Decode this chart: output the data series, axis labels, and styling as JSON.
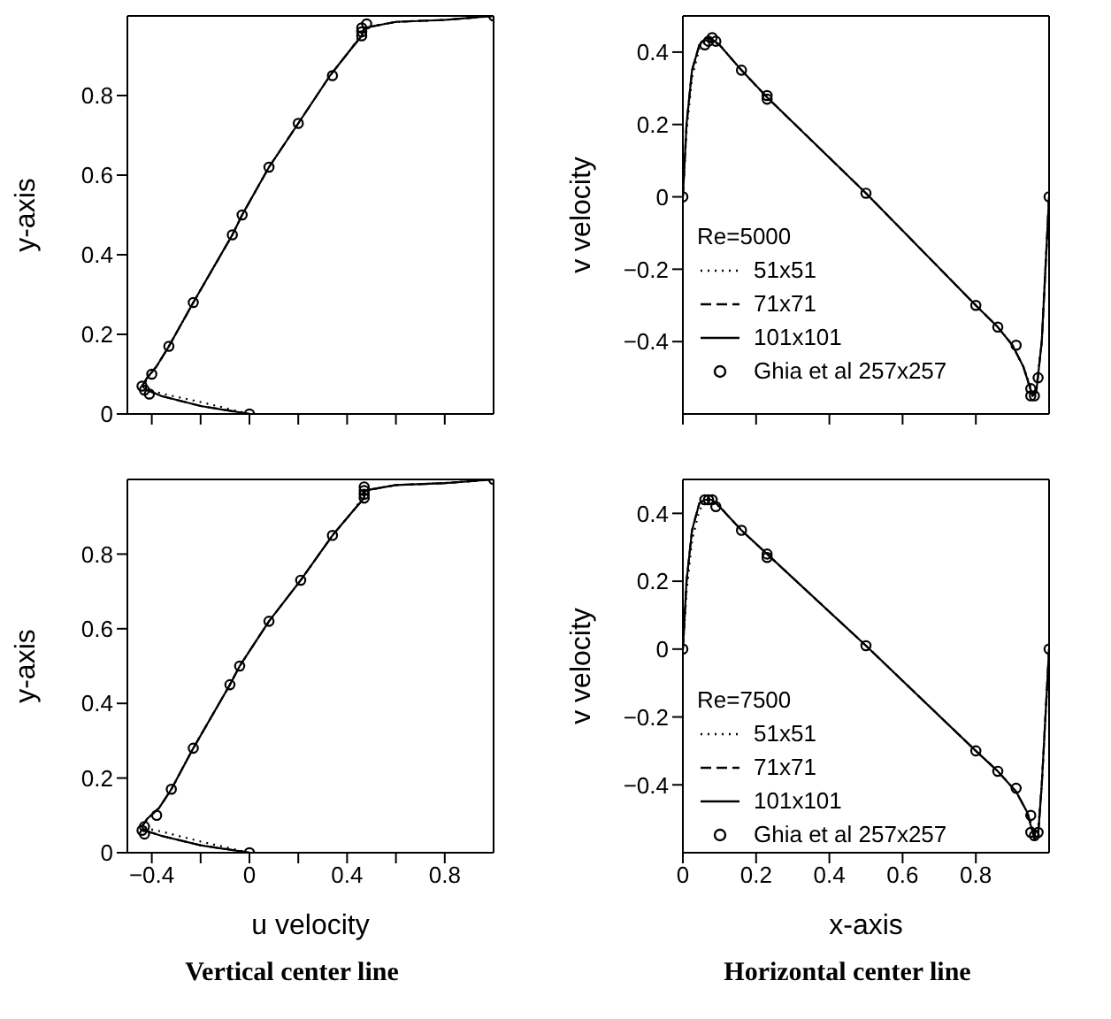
{
  "chart_data": [
    {
      "type": "line",
      "ylabel": "y-axis",
      "xlim": [
        -0.5,
        1
      ],
      "ylim": [
        0,
        1
      ],
      "xticks": [
        {
          "value": -0.4,
          "label": null
        },
        {
          "value": -0.2,
          "label": null
        },
        {
          "value": 0,
          "label": null
        },
        {
          "value": 0.2,
          "label": null
        },
        {
          "value": 0.4,
          "label": null
        },
        {
          "value": 0.6,
          "label": null
        },
        {
          "value": 0.8,
          "label": null
        }
      ],
      "yticks": [
        0,
        0.2,
        0.4,
        0.6,
        0.8
      ],
      "tick_labels": "y",
      "series": [
        {
          "color": "#000000",
          "line_style": "dotted",
          "marker": "none",
          "x": [
            0,
            -0.2,
            -0.35,
            -0.41,
            -0.43,
            -0.42,
            -0.38,
            -0.33,
            -0.23,
            -0.07,
            -0.03,
            0.08,
            0.2,
            0.33,
            0.42,
            0.45,
            0.46,
            0.6,
            0.8,
            1
          ],
          "values": [
            0,
            0.03,
            0.05,
            0.06,
            0.07,
            0.09,
            0.12,
            0.17,
            0.28,
            0.45,
            0.5,
            0.62,
            0.73,
            0.85,
            0.92,
            0.95,
            0.97,
            0.985,
            0.99,
            1
          ]
        },
        {
          "color": "#000000",
          "line_style": "dashed",
          "marker": "none",
          "x": [
            0,
            -0.2,
            -0.36,
            -0.42,
            -0.44,
            -0.42,
            -0.38,
            -0.33,
            -0.23,
            -0.07,
            -0.03,
            0.08,
            0.2,
            0.33,
            0.42,
            0.46,
            0.47,
            0.6,
            0.8,
            1
          ],
          "values": [
            0,
            0.02,
            0.045,
            0.06,
            0.07,
            0.09,
            0.12,
            0.17,
            0.28,
            0.45,
            0.5,
            0.62,
            0.73,
            0.85,
            0.92,
            0.95,
            0.97,
            0.985,
            0.99,
            1
          ]
        },
        {
          "color": "#000000",
          "line_style": "solid",
          "marker": "none",
          "x": [
            0,
            -0.2,
            -0.36,
            -0.42,
            -0.44,
            -0.42,
            -0.38,
            -0.33,
            -0.23,
            -0.07,
            -0.03,
            0.08,
            0.2,
            0.33,
            0.42,
            0.46,
            0.47,
            0.6,
            0.8,
            1
          ],
          "values": [
            0,
            0.02,
            0.045,
            0.06,
            0.07,
            0.09,
            0.12,
            0.17,
            0.28,
            0.45,
            0.5,
            0.62,
            0.73,
            0.85,
            0.92,
            0.95,
            0.97,
            0.985,
            0.99,
            1
          ]
        },
        {
          "type": "scatter",
          "color": "#000000",
          "marker": "circle",
          "x": [
            1,
            0.48,
            0.46,
            0.46,
            0.46,
            0.34,
            0.2,
            0.08,
            -0.03,
            -0.07,
            -0.23,
            -0.33,
            -0.4,
            -0.44,
            -0.43,
            -0.41,
            0
          ],
          "values": [
            1,
            0.98,
            0.97,
            0.96,
            0.95,
            0.85,
            0.73,
            0.62,
            0.5,
            0.45,
            0.28,
            0.17,
            0.1,
            0.07,
            0.06,
            0.05,
            0
          ]
        }
      ]
    },
    {
      "type": "line",
      "ylabel": "v velocity",
      "xlim": [
        0,
        1
      ],
      "ylim": [
        -0.6,
        0.5
      ],
      "xticks": [
        {
          "value": 0,
          "label": null
        },
        {
          "value": 0.2,
          "label": null
        },
        {
          "value": 0.4,
          "label": null
        },
        {
          "value": 0.6,
          "label": null
        },
        {
          "value": 0.8,
          "label": null
        }
      ],
      "yticks": [
        -0.4,
        -0.2,
        0,
        0.2,
        0.4
      ],
      "tick_labels": "y",
      "legend": "bottom left",
      "legend_title": "Re=5000",
      "series": [
        {
          "name": "51x51",
          "color": "#000000",
          "line_style": "dotted",
          "marker": "none",
          "x": [
            0,
            0.01,
            0.025,
            0.045,
            0.065,
            0.08,
            0.1,
            0.16,
            0.23,
            0.5,
            0.8,
            0.86,
            0.9,
            0.93,
            0.955,
            0.965,
            0.98,
            0.99,
            1
          ],
          "values": [
            0,
            0.18,
            0.33,
            0.41,
            0.43,
            0.43,
            0.42,
            0.35,
            0.275,
            0.01,
            -0.3,
            -0.36,
            -0.41,
            -0.47,
            -0.54,
            -0.53,
            -0.4,
            -0.2,
            0
          ]
        },
        {
          "name": "71x71",
          "color": "#000000",
          "line_style": "dashed",
          "marker": "none",
          "x": [
            0,
            0.01,
            0.025,
            0.045,
            0.065,
            0.08,
            0.1,
            0.16,
            0.23,
            0.5,
            0.8,
            0.86,
            0.9,
            0.93,
            0.955,
            0.965,
            0.98,
            0.99,
            1
          ],
          "values": [
            0,
            0.2,
            0.35,
            0.42,
            0.44,
            0.435,
            0.42,
            0.35,
            0.275,
            0.01,
            -0.3,
            -0.36,
            -0.41,
            -0.47,
            -0.55,
            -0.54,
            -0.4,
            -0.2,
            0
          ]
        },
        {
          "name": "101x101",
          "color": "#000000",
          "line_style": "solid",
          "marker": "none",
          "x": [
            0,
            0.01,
            0.025,
            0.045,
            0.065,
            0.08,
            0.1,
            0.16,
            0.23,
            0.5,
            0.8,
            0.86,
            0.9,
            0.93,
            0.955,
            0.965,
            0.98,
            0.99,
            1
          ],
          "values": [
            0,
            0.2,
            0.35,
            0.42,
            0.44,
            0.435,
            0.42,
            0.35,
            0.275,
            0.01,
            -0.3,
            -0.36,
            -0.41,
            -0.47,
            -0.55,
            -0.54,
            -0.4,
            -0.2,
            0
          ]
        },
        {
          "name": "Ghia et al 257x257",
          "type": "scatter",
          "color": "#000000",
          "marker": "circle",
          "x": [
            0,
            0.06,
            0.07,
            0.08,
            0.09,
            0.16,
            0.23,
            0.23,
            0.5,
            0.8,
            0.86,
            0.91,
            0.95,
            0.95,
            0.96,
            0.97,
            1
          ],
          "values": [
            0,
            0.42,
            0.43,
            0.44,
            0.43,
            0.35,
            0.28,
            0.27,
            0.01,
            -0.3,
            -0.36,
            -0.41,
            -0.53,
            -0.55,
            -0.55,
            -0.5,
            0
          ]
        }
      ]
    },
    {
      "type": "line",
      "xlabel": "u velocity",
      "ylabel": "y-axis",
      "xlim": [
        -0.5,
        1
      ],
      "ylim": [
        0,
        1
      ],
      "xticks": [
        -0.4,
        {
          "value": -0.2,
          "label": null
        },
        0,
        {
          "value": 0.2,
          "label": null
        },
        0.4,
        {
          "value": 0.6,
          "label": null
        },
        0.8
      ],
      "yticks": [
        0,
        0.2,
        0.4,
        0.6,
        0.8
      ],
      "annotations": [
        "Vertical center line"
      ],
      "series": [
        {
          "color": "#000000",
          "line_style": "dotted",
          "marker": "none",
          "x": [
            0,
            -0.2,
            -0.35,
            -0.42,
            -0.43,
            -0.42,
            -0.37,
            -0.32,
            -0.23,
            -0.08,
            -0.04,
            0.08,
            0.21,
            0.34,
            0.43,
            0.46,
            0.47,
            0.6,
            0.8,
            1
          ],
          "values": [
            0,
            0.03,
            0.055,
            0.065,
            0.07,
            0.09,
            0.12,
            0.17,
            0.28,
            0.45,
            0.5,
            0.62,
            0.73,
            0.85,
            0.92,
            0.95,
            0.97,
            0.985,
            0.99,
            1
          ]
        },
        {
          "color": "#000000",
          "line_style": "dashed",
          "marker": "none",
          "x": [
            0,
            -0.2,
            -0.36,
            -0.43,
            -0.44,
            -0.42,
            -0.37,
            -0.32,
            -0.23,
            -0.08,
            -0.04,
            0.08,
            0.21,
            0.34,
            0.43,
            0.47,
            0.47,
            0.6,
            0.8,
            1
          ],
          "values": [
            0,
            0.02,
            0.045,
            0.06,
            0.07,
            0.09,
            0.12,
            0.17,
            0.28,
            0.45,
            0.5,
            0.62,
            0.73,
            0.85,
            0.92,
            0.95,
            0.97,
            0.985,
            0.99,
            1
          ]
        },
        {
          "color": "#000000",
          "line_style": "solid",
          "marker": "none",
          "x": [
            0,
            -0.2,
            -0.36,
            -0.43,
            -0.44,
            -0.42,
            -0.37,
            -0.32,
            -0.23,
            -0.08,
            -0.04,
            0.08,
            0.21,
            0.34,
            0.43,
            0.47,
            0.47,
            0.6,
            0.8,
            1
          ],
          "values": [
            0,
            0.02,
            0.045,
            0.06,
            0.07,
            0.09,
            0.12,
            0.17,
            0.28,
            0.45,
            0.5,
            0.62,
            0.73,
            0.85,
            0.92,
            0.95,
            0.97,
            0.985,
            0.99,
            1
          ]
        },
        {
          "type": "scatter",
          "color": "#000000",
          "marker": "circle",
          "x": [
            1,
            0.47,
            0.47,
            0.47,
            0.47,
            0.34,
            0.21,
            0.08,
            -0.04,
            -0.08,
            -0.23,
            -0.32,
            -0.38,
            -0.43,
            -0.44,
            -0.43,
            0
          ],
          "values": [
            1,
            0.98,
            0.97,
            0.96,
            0.95,
            0.85,
            0.73,
            0.62,
            0.5,
            0.45,
            0.28,
            0.17,
            0.1,
            0.07,
            0.06,
            0.05,
            0
          ]
        }
      ]
    },
    {
      "type": "line",
      "xlabel": "x-axis",
      "ylabel": "v velocity",
      "xlim": [
        0,
        1
      ],
      "ylim": [
        -0.6,
        0.5
      ],
      "xticks": [
        0,
        0.2,
        0.4,
        0.6,
        0.8
      ],
      "yticks": [
        -0.4,
        -0.2,
        0,
        0.2,
        0.4
      ],
      "legend": "bottom left",
      "legend_title": "Re=7500",
      "annotations": [
        "Horizontal center line"
      ],
      "series": [
        {
          "name": "51x51",
          "color": "#000000",
          "line_style": "dotted",
          "marker": "none",
          "x": [
            0,
            0.01,
            0.025,
            0.045,
            0.06,
            0.08,
            0.1,
            0.16,
            0.23,
            0.5,
            0.8,
            0.86,
            0.91,
            0.94,
            0.96,
            0.97,
            0.98,
            0.99,
            1
          ],
          "values": [
            0,
            0.17,
            0.32,
            0.41,
            0.43,
            0.43,
            0.42,
            0.35,
            0.28,
            0.01,
            -0.3,
            -0.36,
            -0.42,
            -0.48,
            -0.54,
            -0.53,
            -0.4,
            -0.2,
            0
          ]
        },
        {
          "name": "71x71",
          "color": "#000000",
          "line_style": "dashed",
          "marker": "none",
          "x": [
            0,
            0.01,
            0.025,
            0.045,
            0.06,
            0.08,
            0.1,
            0.16,
            0.23,
            0.5,
            0.8,
            0.86,
            0.91,
            0.94,
            0.96,
            0.97,
            0.98,
            0.99,
            1
          ],
          "values": [
            0,
            0.2,
            0.35,
            0.43,
            0.44,
            0.44,
            0.42,
            0.35,
            0.28,
            0.01,
            -0.3,
            -0.36,
            -0.42,
            -0.48,
            -0.55,
            -0.55,
            -0.4,
            -0.2,
            0
          ]
        },
        {
          "name": "101x101",
          "color": "#000000",
          "line_style": "solid",
          "marker": "none",
          "x": [
            0,
            0.01,
            0.025,
            0.045,
            0.06,
            0.08,
            0.1,
            0.16,
            0.23,
            0.5,
            0.8,
            0.86,
            0.91,
            0.94,
            0.96,
            0.97,
            0.98,
            0.99,
            1
          ],
          "values": [
            0,
            0.2,
            0.35,
            0.43,
            0.44,
            0.44,
            0.42,
            0.35,
            0.28,
            0.01,
            -0.3,
            -0.36,
            -0.42,
            -0.48,
            -0.56,
            -0.55,
            -0.4,
            -0.2,
            0
          ]
        },
        {
          "name": "Ghia et al 257x257",
          "type": "scatter",
          "color": "#000000",
          "marker": "circle",
          "x": [
            0,
            0.06,
            0.07,
            0.08,
            0.09,
            0.16,
            0.23,
            0.23,
            0.5,
            0.8,
            0.86,
            0.91,
            0.95,
            0.95,
            0.96,
            0.97,
            1
          ],
          "values": [
            0,
            0.44,
            0.44,
            0.44,
            0.42,
            0.35,
            0.28,
            0.27,
            0.01,
            -0.3,
            -0.36,
            -0.41,
            -0.49,
            -0.54,
            -0.55,
            -0.54,
            0
          ]
        }
      ]
    }
  ]
}
